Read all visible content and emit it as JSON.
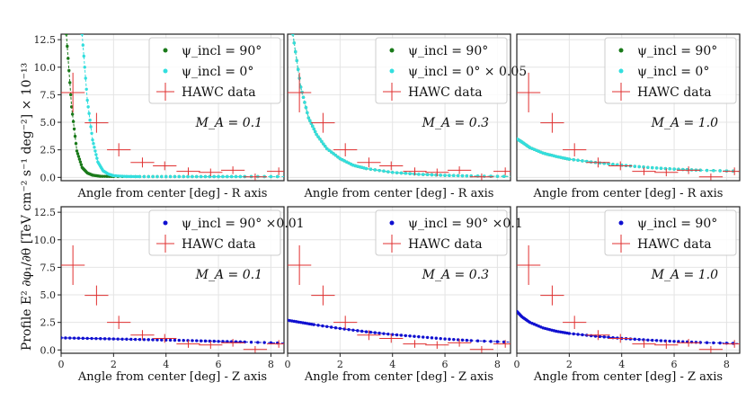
{
  "figure": {
    "ylabel": "Profile  E² ∂φ₁/∂θ  [TeV cm⁻² s⁻¹ deg⁻²] × 10⁻¹³"
  },
  "chart_data": [
    {
      "type": "scatter",
      "row": 0,
      "col": 0,
      "xlabel": "Angle from center [deg] - R axis",
      "xlim": [
        0,
        8.5
      ],
      "ylim": [
        -0.3,
        13
      ],
      "yticks": [
        0.0,
        2.5,
        5.0,
        7.5,
        10.0,
        12.5
      ],
      "annotation": "M_A = 0.1",
      "legend": [
        "ψ_incl = 90°",
        "ψ_incl = 0°",
        "HAWC data"
      ],
      "series": [
        {
          "name": "ψ_incl = 90°",
          "color": "#1a7a1a",
          "marker": "dot",
          "x": [
            0.2,
            0.4,
            0.6,
            0.8,
            1.0,
            1.2,
            1.5,
            2,
            3,
            4,
            5,
            6,
            7,
            8.5
          ],
          "y": [
            13,
            6.4,
            2.4,
            0.9,
            0.4,
            0.2,
            0.1,
            0.08,
            0.07,
            0.07,
            0.07,
            0.07,
            0.07,
            0.07
          ]
        },
        {
          "name": "ψ_incl = 0°",
          "color": "#33dede",
          "marker": "dot",
          "x": [
            0.8,
            1.0,
            1.2,
            1.4,
            1.6,
            1.8,
            2.0,
            2.5,
            3,
            4,
            5,
            6,
            7,
            8.5
          ],
          "y": [
            13,
            7.0,
            3.4,
            1.4,
            0.6,
            0.3,
            0.15,
            0.08,
            0.07,
            0.07,
            0.07,
            0.07,
            0.07,
            0.07
          ]
        }
      ]
    },
    {
      "type": "scatter",
      "row": 0,
      "col": 1,
      "xlabel": "Angle from center [deg] - R axis",
      "xlim": [
        0,
        8.5
      ],
      "ylim": [
        -0.3,
        13
      ],
      "annotation": "M_A = 0.3",
      "legend": [
        "ψ_incl = 90°",
        "ψ_incl = 0° × 0.05",
        "HAWC data"
      ],
      "series": [
        {
          "name": "ψ_incl = 90°",
          "color": "#1a7a1a",
          "marker": "dot",
          "x": [
            0.2,
            0.5,
            0.8,
            1.1,
            1.5,
            2.0,
            2.5,
            3.0,
            4.0,
            5.0,
            6.0,
            7.0,
            8.5
          ],
          "y": [
            13,
            8.2,
            5.4,
            3.9,
            2.6,
            1.7,
            1.1,
            0.8,
            0.45,
            0.28,
            0.18,
            0.12,
            0.08
          ]
        },
        {
          "name": "ψ_incl = 0° × 0.05",
          "color": "#33dede",
          "marker": "dot",
          "x": [
            0.2,
            0.5,
            0.8,
            1.1,
            1.5,
            2.0,
            2.5,
            3.0,
            4.0,
            5.0,
            6.0,
            7.0,
            8.5
          ],
          "y": [
            13,
            8.2,
            5.4,
            3.9,
            2.6,
            1.7,
            1.1,
            0.8,
            0.45,
            0.28,
            0.18,
            0.12,
            0.08
          ]
        }
      ]
    },
    {
      "type": "scatter",
      "row": 0,
      "col": 2,
      "xlabel": "Angle from center [deg] - R axis",
      "xlim": [
        0,
        8.5
      ],
      "ylim": [
        -0.3,
        13
      ],
      "annotation": "M_A = 1.0",
      "legend": [
        "ψ_incl = 90°",
        "ψ_incl = 0°",
        "HAWC data"
      ],
      "series": [
        {
          "name": "ψ_incl = 90°",
          "color": "#1a7a1a",
          "marker": "dot",
          "x": [
            0.0,
            0.2,
            0.5,
            1.0,
            1.5,
            2.0,
            3.0,
            4.0,
            5.0,
            6.0,
            7.0,
            8.5
          ],
          "y": [
            3.5,
            3.2,
            2.7,
            2.2,
            1.9,
            1.65,
            1.35,
            1.1,
            0.9,
            0.75,
            0.65,
            0.55
          ]
        },
        {
          "name": "ψ_incl = 0°",
          "color": "#33dede",
          "marker": "dot",
          "x": [
            0.0,
            0.2,
            0.5,
            1.0,
            1.5,
            2.0,
            3.0,
            4.0,
            5.0,
            6.0,
            7.0,
            8.5
          ],
          "y": [
            3.5,
            3.2,
            2.7,
            2.2,
            1.9,
            1.65,
            1.35,
            1.1,
            0.9,
            0.75,
            0.65,
            0.55
          ]
        }
      ]
    },
    {
      "type": "scatter",
      "row": 1,
      "col": 0,
      "xlabel": "Angle from center [deg] - Z axis",
      "xlim": [
        0,
        8.5
      ],
      "ylim": [
        -0.3,
        13
      ],
      "yticks": [
        0.0,
        2.5,
        5.0,
        7.5,
        10.0,
        12.5
      ],
      "xticks": [
        0,
        2,
        4,
        6,
        8
      ],
      "annotation": "M_A = 0.1",
      "legend": [
        "ψ_incl = 90° ×0.01",
        "HAWC data"
      ],
      "series": [
        {
          "name": "ψ_incl = 90° ×0.01",
          "color": "#1010d0",
          "marker": "dot",
          "x": [
            0.0,
            1.0,
            2.0,
            3.0,
            4.0,
            5.0,
            6.0,
            7.0,
            8.5
          ],
          "y": [
            1.1,
            1.05,
            1.0,
            0.95,
            0.9,
            0.85,
            0.78,
            0.72,
            0.62
          ]
        }
      ]
    },
    {
      "type": "scatter",
      "row": 1,
      "col": 1,
      "xlabel": "Angle from center [deg] - Z axis",
      "xlim": [
        0,
        8.5
      ],
      "ylim": [
        -0.3,
        13
      ],
      "xticks": [
        0,
        2,
        4,
        6,
        8
      ],
      "annotation": "M_A = 0.3",
      "legend": [
        "ψ_incl = 90° ×0.1",
        "HAWC data"
      ],
      "series": [
        {
          "name": "ψ_incl = 90° ×0.1",
          "color": "#1010d0",
          "marker": "dot",
          "x": [
            0.0,
            0.5,
            1.0,
            2.0,
            3.0,
            4.0,
            5.0,
            6.0,
            7.0,
            8.5
          ],
          "y": [
            2.7,
            2.5,
            2.3,
            1.95,
            1.65,
            1.4,
            1.2,
            1.0,
            0.85,
            0.7
          ]
        }
      ]
    },
    {
      "type": "scatter",
      "row": 1,
      "col": 2,
      "xlabel": "Angle from center [deg] - Z axis",
      "xlim": [
        0,
        8.5
      ],
      "ylim": [
        -0.3,
        13
      ],
      "xticks": [
        0,
        2,
        4,
        6,
        8
      ],
      "annotation": "M_A = 1.0",
      "legend": [
        "ψ_incl = 90°",
        "HAWC data"
      ],
      "series": [
        {
          "name": "ψ_incl = 90°",
          "color": "#1010d0",
          "marker": "dot",
          "x": [
            0.0,
            0.2,
            0.5,
            1.0,
            1.5,
            2.0,
            3.0,
            4.0,
            5.0,
            6.0,
            7.0,
            8.5
          ],
          "y": [
            3.5,
            3.0,
            2.5,
            2.0,
            1.7,
            1.5,
            1.25,
            1.05,
            0.9,
            0.78,
            0.68,
            0.58
          ]
        }
      ]
    }
  ],
  "hawc_data": {
    "name": "HAWC data",
    "color": "#e03030",
    "points": [
      {
        "x": 0.45,
        "xerr": 0.45,
        "y": 7.7,
        "yerr": 1.8
      },
      {
        "x": 1.35,
        "xerr": 0.45,
        "y": 4.95,
        "yerr": 0.9
      },
      {
        "x": 2.2,
        "xerr": 0.45,
        "y": 2.5,
        "yerr": 0.6
      },
      {
        "x": 3.1,
        "xerr": 0.45,
        "y": 1.35,
        "yerr": 0.45
      },
      {
        "x": 3.95,
        "xerr": 0.45,
        "y": 1.05,
        "yerr": 0.4
      },
      {
        "x": 4.85,
        "xerr": 0.45,
        "y": 0.55,
        "yerr": 0.35
      },
      {
        "x": 5.7,
        "xerr": 0.45,
        "y": 0.45,
        "yerr": 0.35
      },
      {
        "x": 6.55,
        "xerr": 0.45,
        "y": 0.65,
        "yerr": 0.35
      },
      {
        "x": 7.4,
        "xerr": 0.45,
        "y": 0.05,
        "yerr": 0.3
      },
      {
        "x": 8.3,
        "xerr": 0.45,
        "y": 0.55,
        "yerr": 0.35
      }
    ]
  }
}
